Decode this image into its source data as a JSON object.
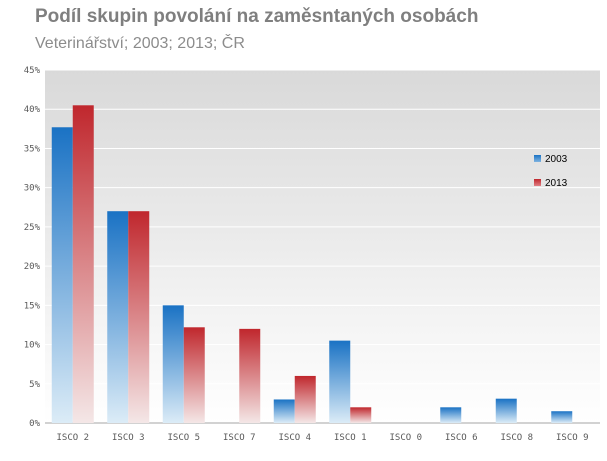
{
  "chart_data": {
    "type": "bar",
    "title": "Podíl skupin povolání na zaměsntaných osobách",
    "subtitle": "Veterinářství; 2003; 2013; ČR",
    "categories": [
      "ISCO 2",
      "ISCO 3",
      "ISCO 5",
      "ISCO 7",
      "ISCO 4",
      "ISCO 1",
      "ISCO 0",
      "ISCO 6",
      "ISCO 8",
      "ISCO 9"
    ],
    "series": [
      {
        "name": "2003",
        "color": "#1a72c4",
        "values": [
          37.7,
          27.0,
          15.0,
          0,
          3.0,
          10.5,
          0,
          2.0,
          3.1,
          1.5
        ]
      },
      {
        "name": "2013",
        "color": "#c0272d",
        "values": [
          40.5,
          27.0,
          12.2,
          12.0,
          6.0,
          2.0,
          0,
          0,
          0,
          0
        ]
      }
    ],
    "y_ticks": [
      "0%",
      "5%",
      "10%",
      "15%",
      "20%",
      "25%",
      "30%",
      "35%",
      "40%",
      "45%"
    ],
    "ylim": [
      0,
      45
    ],
    "grid": true,
    "legend_position": "right"
  }
}
